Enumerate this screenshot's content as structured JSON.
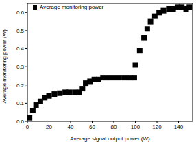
{
  "chart_data": {
    "type": "scatter",
    "x_label": "Average signal output power (W)",
    "y_label": "Average monitoring power (W)",
    "series": [
      {
        "name": "Average monitoring power",
        "color": "#000000",
        "marker": "square",
        "x": [
          2,
          5,
          8,
          12,
          16,
          20,
          25,
          30,
          35,
          39,
          44,
          48,
          51,
          54,
          58,
          62,
          66,
          70,
          75,
          80,
          85,
          90,
          95,
          99,
          100,
          104,
          108,
          111,
          114,
          118,
          122,
          126,
          131,
          135,
          139,
          143,
          147,
          150
        ],
        "values": [
          0.02,
          0.06,
          0.09,
          0.11,
          0.13,
          0.14,
          0.15,
          0.155,
          0.16,
          0.16,
          0.16,
          0.16,
          0.18,
          0.21,
          0.22,
          0.23,
          0.23,
          0.24,
          0.24,
          0.24,
          0.24,
          0.24,
          0.24,
          0.24,
          0.31,
          0.39,
          0.46,
          0.51,
          0.55,
          0.58,
          0.6,
          0.61,
          0.62,
          0.62,
          0.63,
          0.63,
          0.62,
          0.63
        ]
      }
    ],
    "xlim": [
      0,
      153
    ],
    "xticks": [
      0,
      20,
      40,
      60,
      80,
      100,
      120,
      140
    ],
    "ylim": [
      0,
      0.65
    ],
    "yticks": [
      {
        "value": 0,
        "label": "0.0"
      },
      0.1,
      0.2,
      0.3,
      0.4,
      0.5,
      0.6
    ],
    "legend": "upper left"
  }
}
